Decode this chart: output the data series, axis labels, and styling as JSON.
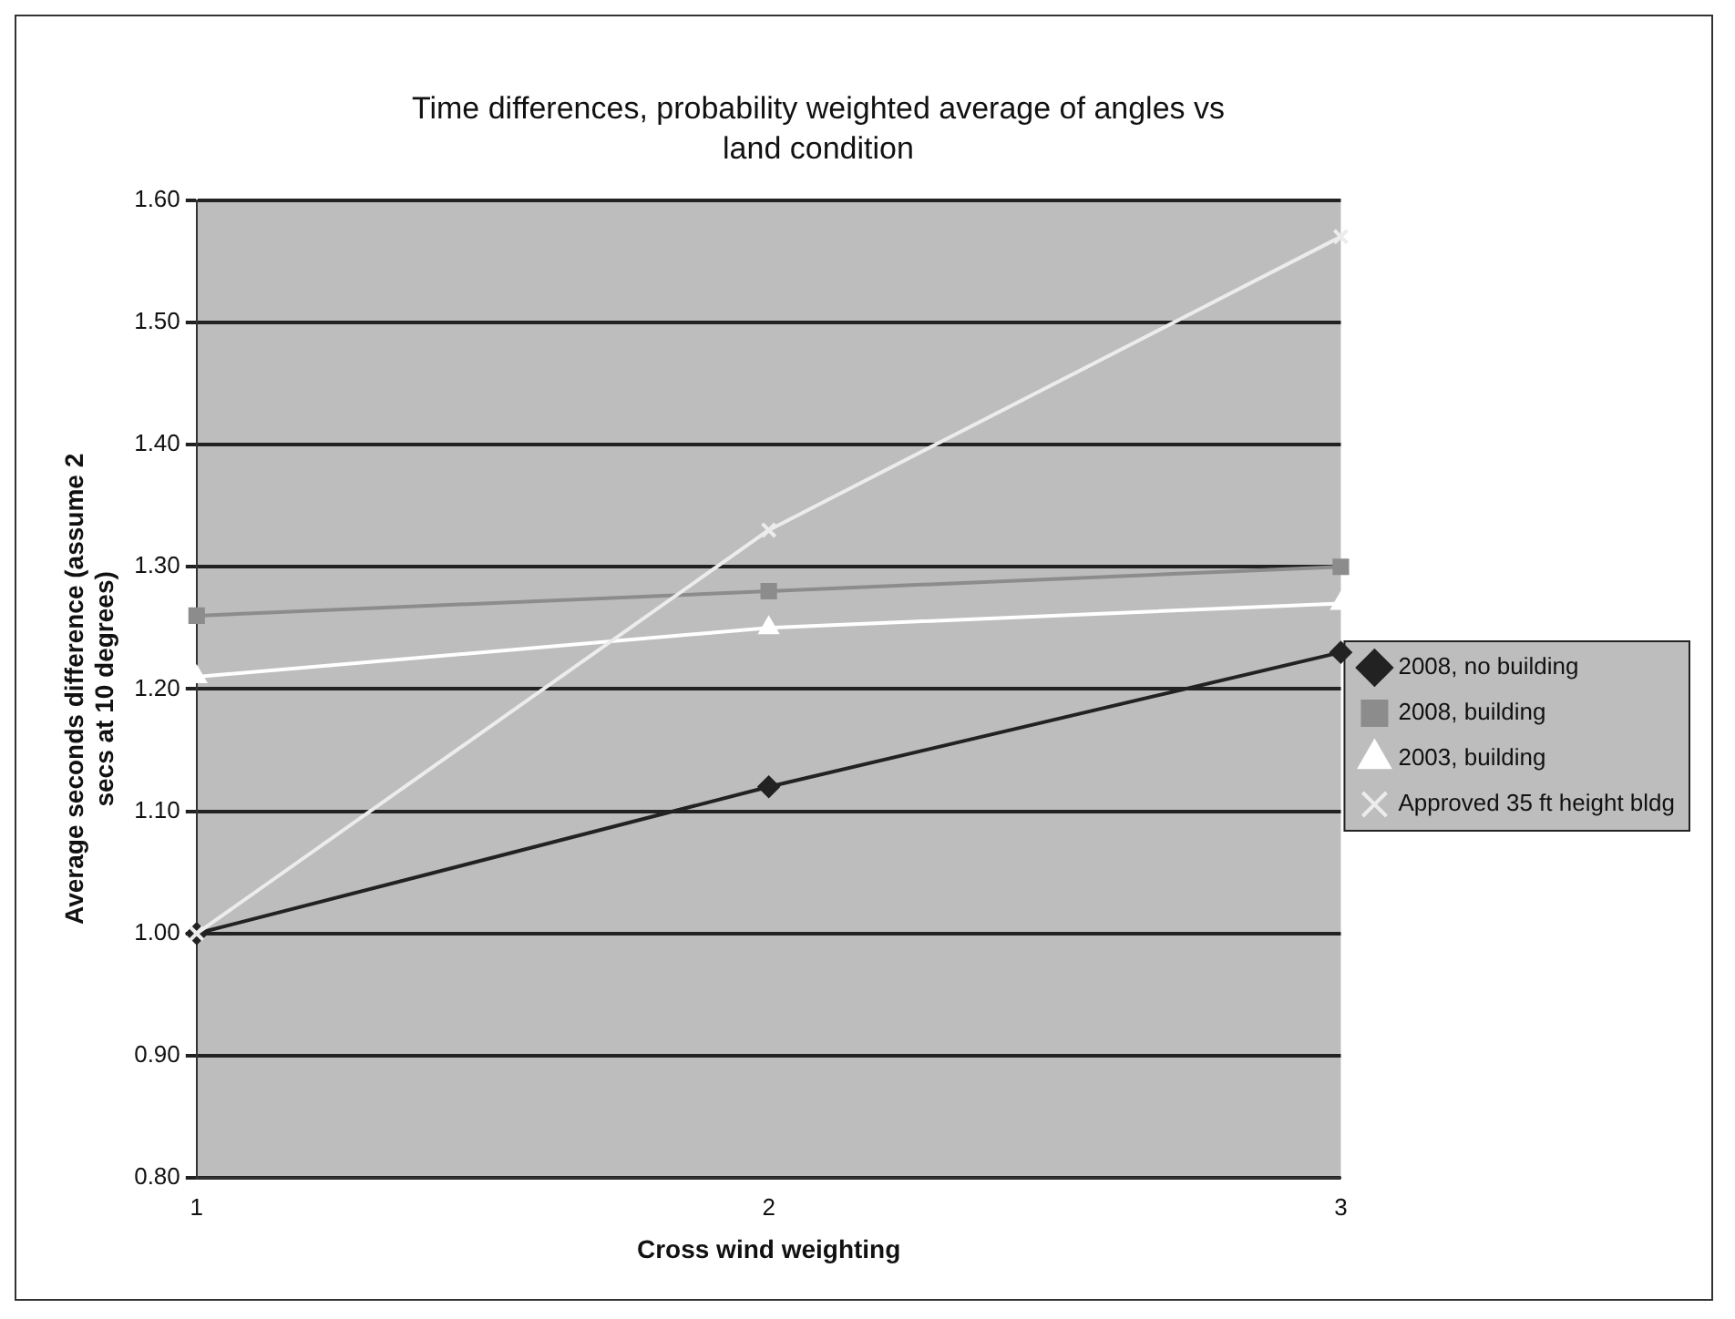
{
  "chart_data": {
    "type": "line",
    "title": "Time differences, probability weighted average of angles vs land condition",
    "xlabel": "Cross wind weighting",
    "ylabel": "Average seconds difference (assume 2 secs at 10 degrees)",
    "categories": [
      "1",
      "2",
      "3"
    ],
    "series": [
      {
        "name": "2008, no building",
        "color": "#222222",
        "marker": "diamond",
        "values": [
          1.0,
          1.12,
          1.23
        ]
      },
      {
        "name": "2008, building",
        "color": "#8c8c8c",
        "marker": "square",
        "values": [
          1.26,
          1.28,
          1.3
        ]
      },
      {
        "name": "2003, building",
        "color": "#ffffff",
        "marker": "triangle",
        "values": [
          1.21,
          1.25,
          1.27
        ]
      },
      {
        "name": "Approved 35 ft height bldg",
        "color": "#ececec",
        "marker": "cross",
        "values": [
          1.0,
          1.33,
          1.57
        ]
      }
    ],
    "ylim": [
      0.8,
      1.6
    ],
    "yticks": [
      {
        "value": 0.8,
        "label": "0.80"
      },
      {
        "value": 0.9,
        "label": "0.90"
      },
      {
        "value": 1.0,
        "label": "1.00"
      },
      {
        "value": 1.1,
        "label": "1.10"
      },
      {
        "value": 1.2,
        "label": "1.20"
      },
      {
        "value": 1.3,
        "label": "1.30"
      },
      {
        "value": 1.4,
        "label": "1.40"
      },
      {
        "value": 1.5,
        "label": "1.50"
      },
      {
        "value": 1.6,
        "label": "1.60"
      }
    ],
    "grid": "y",
    "legend": "right"
  }
}
